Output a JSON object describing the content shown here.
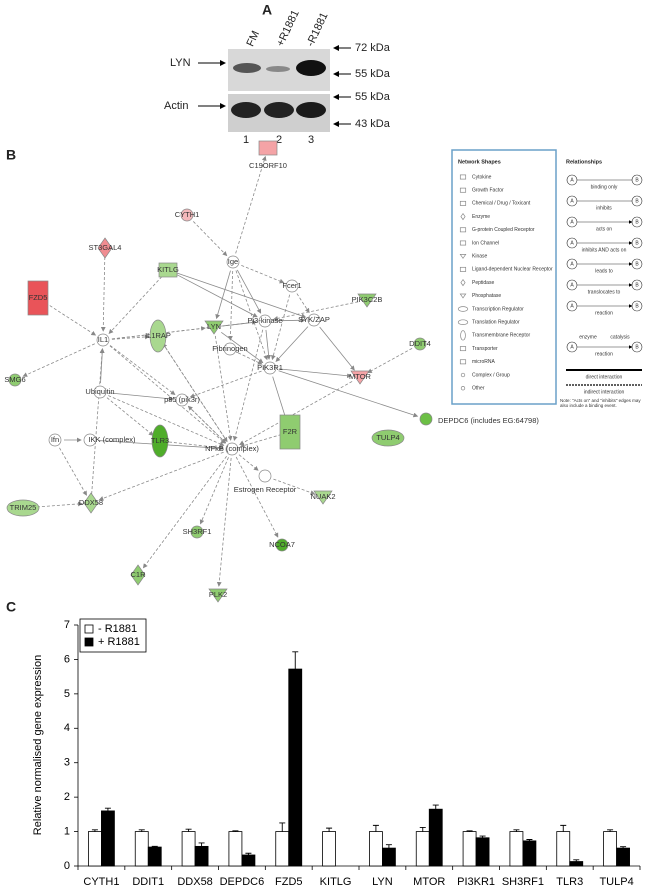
{
  "panel_a": {
    "label": "A",
    "lanes": [
      "FM",
      "+R1881",
      "-R1881"
    ],
    "lane_numbers": [
      "1",
      "2",
      "3"
    ],
    "rows": [
      "LYN",
      "Actin"
    ],
    "markers": [
      "72 kDa",
      "55 kDa",
      "55 kDa",
      "43 kDa"
    ]
  },
  "panel_b": {
    "label": "B",
    "nodes": [
      {
        "label": "C19ORF10",
        "shape": "rect",
        "color": "#f4a3a6"
      },
      {
        "label": "CYTH1",
        "shape": "circle",
        "color": "#f4b8bb"
      },
      {
        "label": "ST3GAL4",
        "shape": "diamond",
        "color": "#f08c91"
      },
      {
        "label": "FZD5",
        "shape": "tallrect",
        "color": "#e95459"
      },
      {
        "label": "KITLG",
        "shape": "rect",
        "color": "#a9d88f"
      },
      {
        "label": "Ige",
        "shape": "circle",
        "color": "#ffffff"
      },
      {
        "label": "Fcer1",
        "shape": "circle",
        "color": "#ffffff"
      },
      {
        "label": "PIK3C2B",
        "shape": "triangle",
        "color": "#8fcc70"
      },
      {
        "label": "IL1",
        "shape": "circle",
        "color": "#ffffff"
      },
      {
        "label": "IL1RAP",
        "shape": "vellipse",
        "color": "#a9d88f"
      },
      {
        "label": "LYN",
        "shape": "triangle",
        "color": "#8fcc70"
      },
      {
        "label": "Pi3-kinase",
        "shape": "circle",
        "color": "#ffffff"
      },
      {
        "label": "SYK/ZAP",
        "shape": "circle",
        "color": "#ffffff"
      },
      {
        "label": "DDIT4",
        "shape": "circle",
        "color": "#8fcc70"
      },
      {
        "label": "SMG6",
        "shape": "circle",
        "color": "#8fcc70"
      },
      {
        "label": "Fibrinogen",
        "shape": "circle",
        "color": "#ffffff"
      },
      {
        "label": "PIK3R1",
        "shape": "circle",
        "color": "#ffffff"
      },
      {
        "label": "MTOR",
        "shape": "triangle",
        "color": "#f4a3a6"
      },
      {
        "label": "Ubiquitin",
        "shape": "circle",
        "color": "#ffffff"
      },
      {
        "label": "p85 (pik3r)",
        "shape": "circle",
        "color": "#ffffff"
      },
      {
        "label": "DEPDC6 (includes EG:64798)",
        "shape": "circle",
        "color": "#6cbf45"
      },
      {
        "label": "F2R",
        "shape": "tallrect",
        "color": "#8fcc70"
      },
      {
        "label": "TULP4",
        "shape": "ellipse",
        "color": "#8fcc70"
      },
      {
        "label": "Ifn",
        "shape": "circle",
        "color": "#ffffff"
      },
      {
        "label": "IKK (complex)",
        "shape": "circle",
        "color": "#ffffff"
      },
      {
        "label": "TLR3",
        "shape": "vellipse",
        "color": "#4fad2a"
      },
      {
        "label": "NFkB (complex)",
        "shape": "circle",
        "color": "#ffffff"
      },
      {
        "label": "Estrogen Receptor",
        "shape": "circle",
        "color": "#ffffff"
      },
      {
        "label": "NUAK2",
        "shape": "triangle",
        "color": "#a9d88f"
      },
      {
        "label": "TRIM25",
        "shape": "ellipse",
        "color": "#a9d88f"
      },
      {
        "label": "DDX58",
        "shape": "diamond",
        "color": "#a9d88f"
      },
      {
        "label": "SH3RF1",
        "shape": "circle",
        "color": "#8fcc70"
      },
      {
        "label": "NCOA7",
        "shape": "circle",
        "color": "#4fad2a"
      },
      {
        "label": "C1R",
        "shape": "diamond",
        "color": "#8fcc70"
      },
      {
        "label": "PLK2",
        "shape": "triangle",
        "color": "#8fcc70"
      }
    ],
    "legend": {
      "shapes_title": "Network Shapes",
      "shapes": [
        "Cytokine",
        "Growth Factor",
        "Chemical / Drug / Toxicant",
        "Enzyme",
        "G-protein Coupled Receptor",
        "Ion Channel",
        "Kinase",
        "Ligand-dependent Nuclear Receptor",
        "Peptidase",
        "Phosphatase",
        "Transcription Regulator",
        "Translation Regulator",
        "Transmembrane Receptor",
        "Transporter",
        "microRNA",
        "Complex / Group",
        "Other"
      ],
      "relationships_title": "Relationships",
      "end_a": "A",
      "end_b": "B",
      "relationships": [
        "binding only",
        "inhibits",
        "acts on",
        "inhibits AND acts on",
        "leads to",
        "translocates to",
        "reaction"
      ],
      "enzyme": "enzyme",
      "catalysis": "catalysis",
      "reaction": "reaction",
      "direct": "direct interaction",
      "indirect": "indirect interaction",
      "note": "Note: \"Acts on\" and \"inhibits\" edges may also include a binding event."
    }
  },
  "chart_data": {
    "type": "bar",
    "panel_label": "C",
    "y_label": "Relative normalised gene expression",
    "categories": [
      "CYTH1",
      "DDIT1",
      "DDX58",
      "DEPDC6",
      "FZD5",
      "KITLG",
      "LYN",
      "MTOR",
      "PI3KR1",
      "SH3RF1",
      "TLR3",
      "TULP4"
    ],
    "series": [
      {
        "name": "- R1881",
        "color": "#ffffff",
        "values": [
          1,
          1,
          1,
          1,
          1,
          1,
          1,
          1,
          1,
          1,
          1,
          1
        ],
        "errors": [
          0.05,
          0.05,
          0.07,
          0.02,
          0.25,
          0.1,
          0.18,
          0.12,
          0.02,
          0.05,
          0.18,
          0.05
        ]
      },
      {
        "name": "+ R1881",
        "color": "#000000",
        "values": [
          1.6,
          0.55,
          0.57,
          0.32,
          5.72,
          0,
          0.52,
          1.65,
          0.82,
          0.73,
          0.13,
          0.52
        ],
        "errors": [
          0.08,
          0.02,
          0.1,
          0.05,
          0.5,
          0,
          0.1,
          0.12,
          0.05,
          0.04,
          0.05,
          0.04
        ]
      }
    ],
    "ylim": [
      0,
      7
    ],
    "yticks": [
      0,
      1,
      2,
      3,
      4,
      5,
      6,
      7
    ],
    "grid": false
  }
}
